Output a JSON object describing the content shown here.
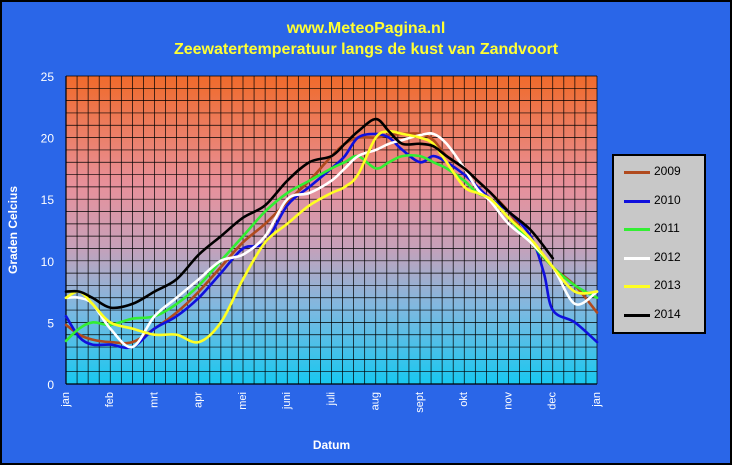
{
  "header": {
    "site": "www.MeteoPagina.nl",
    "title": "Zeewatertemperatuur langs de kust van Zandvoort"
  },
  "chart_data": {
    "type": "line",
    "title": "Zeewatertemperatuur langs de kust van Zandvoort",
    "xlabel": "Datum",
    "ylabel": "Graden Celcius",
    "ylim": [
      0,
      25
    ],
    "yticks": [
      0,
      5,
      10,
      15,
      20,
      25
    ],
    "xlim": [
      0,
      12
    ],
    "month_labels": [
      "jan",
      "feb",
      "mrt",
      "apr",
      "mei",
      "juni",
      "juli",
      "aug",
      "sept",
      "okt",
      "nov",
      "dec",
      "jan"
    ],
    "grid": true,
    "legend": "right",
    "series": [
      {
        "name": "2009",
        "color": "#b04a1e",
        "x": [
          0,
          0.3,
          0.6,
          1,
          1.5,
          2,
          2.5,
          3,
          3.5,
          4,
          4.5,
          5,
          5.5,
          6,
          6.3,
          6.6,
          7,
          7.3,
          7.6,
          8,
          8.3,
          8.6,
          9,
          9.3,
          9.6,
          10,
          10.5,
          11,
          11.5,
          12
        ],
        "y": [
          4.8,
          4,
          3.6,
          3.4,
          3.4,
          4.5,
          5.8,
          7.5,
          9.5,
          11.5,
          13,
          14.8,
          16.5,
          18.5,
          19.5,
          20,
          20,
          20.2,
          20.3,
          20.3,
          19.8,
          18.5,
          17.5,
          16.5,
          15.5,
          14,
          11.5,
          9.5,
          8,
          5.8
        ]
      },
      {
        "name": "2010",
        "color": "#1010dd",
        "x": [
          0,
          0.3,
          0.6,
          1,
          1.5,
          2,
          2.5,
          3,
          3.5,
          4,
          4.5,
          5,
          5.5,
          6,
          6.3,
          6.6,
          7,
          7.3,
          7.6,
          8,
          8.3,
          8.6,
          9,
          9.3,
          9.6,
          10,
          10.5,
          10.8,
          11,
          11.5,
          12
        ],
        "y": [
          5.5,
          3.8,
          3.2,
          3.2,
          3,
          4.5,
          5.5,
          7,
          9,
          11,
          11.5,
          14.5,
          16,
          17.5,
          18.5,
          20,
          20.3,
          20,
          19,
          18,
          18.5,
          18,
          17,
          16,
          15,
          14,
          12,
          9,
          6,
          5,
          3.4
        ]
      },
      {
        "name": "2011",
        "color": "#33ee33",
        "x": [
          0,
          0.3,
          0.6,
          1,
          1.5,
          2,
          2.5,
          3,
          3.5,
          4,
          4.5,
          5,
          5.5,
          6,
          6.3,
          6.6,
          7,
          7.3,
          7.6,
          8,
          8.3,
          8.6,
          9,
          9.3,
          9.6,
          10,
          10.5,
          11,
          11.5,
          12
        ],
        "y": [
          3.5,
          4.5,
          5,
          4.8,
          5.3,
          5.5,
          6.5,
          8,
          10,
          12,
          14,
          15.5,
          16.5,
          17.5,
          18,
          18.5,
          17.5,
          18,
          18.5,
          18.5,
          18,
          17.5,
          16.5,
          15.5,
          15,
          13.5,
          11.5,
          9.5,
          8,
          7
        ]
      },
      {
        "name": "2012",
        "color": "#ffffff",
        "x": [
          0,
          0.3,
          0.6,
          1,
          1.5,
          2,
          2.5,
          3,
          3.5,
          4,
          4.5,
          5,
          5.5,
          6,
          6.3,
          6.6,
          7,
          7.3,
          7.6,
          8,
          8.3,
          8.6,
          9,
          9.3,
          9.6,
          10,
          10.5,
          11,
          11.5,
          12
        ],
        "y": [
          7,
          7,
          6.5,
          4.5,
          3,
          5.5,
          7,
          8.5,
          10,
          10.5,
          12,
          15,
          15.5,
          16.5,
          17.5,
          18.5,
          19,
          19.5,
          19.8,
          20.2,
          20.3,
          19.5,
          17.5,
          15.8,
          14.8,
          13,
          11.5,
          9.5,
          6.5,
          7.5
        ]
      },
      {
        "name": "2013",
        "color": "#ffff22",
        "x": [
          0,
          0.3,
          0.6,
          1,
          1.5,
          2,
          2.5,
          3,
          3.5,
          4,
          4.5,
          5,
          5.5,
          6,
          6.3,
          6.6,
          7,
          7.3,
          7.6,
          8,
          8.3,
          8.6,
          9,
          9.3,
          9.6,
          10,
          10.5,
          11,
          11.5,
          12
        ],
        "y": [
          7,
          7.5,
          6.5,
          5,
          4.5,
          4,
          4,
          3.4,
          5,
          8.5,
          11.5,
          13,
          14.5,
          15.5,
          16,
          17,
          20,
          20.5,
          20.3,
          20,
          19.5,
          18,
          16,
          15.5,
          15,
          13.5,
          11.8,
          9.5,
          7.5,
          7.5
        ]
      },
      {
        "name": "2014",
        "color": "#000000",
        "x": [
          0,
          0.3,
          0.6,
          1,
          1.5,
          2,
          2.5,
          3,
          3.5,
          4,
          4.5,
          5,
          5.5,
          6,
          6.3,
          6.6,
          7,
          7.3,
          7.6,
          8,
          8.3,
          8.6,
          9,
          9.3,
          9.6,
          10,
          10.5,
          11
        ],
        "y": [
          7.5,
          7.5,
          7,
          6.2,
          6.5,
          7.5,
          8.5,
          10.5,
          12,
          13.5,
          14.5,
          16.5,
          18,
          18.5,
          19.5,
          20.5,
          21.5,
          20.5,
          19.5,
          19.5,
          19.3,
          18.5,
          17.5,
          16.5,
          15.5,
          14,
          12.5,
          10.2
        ]
      }
    ]
  }
}
